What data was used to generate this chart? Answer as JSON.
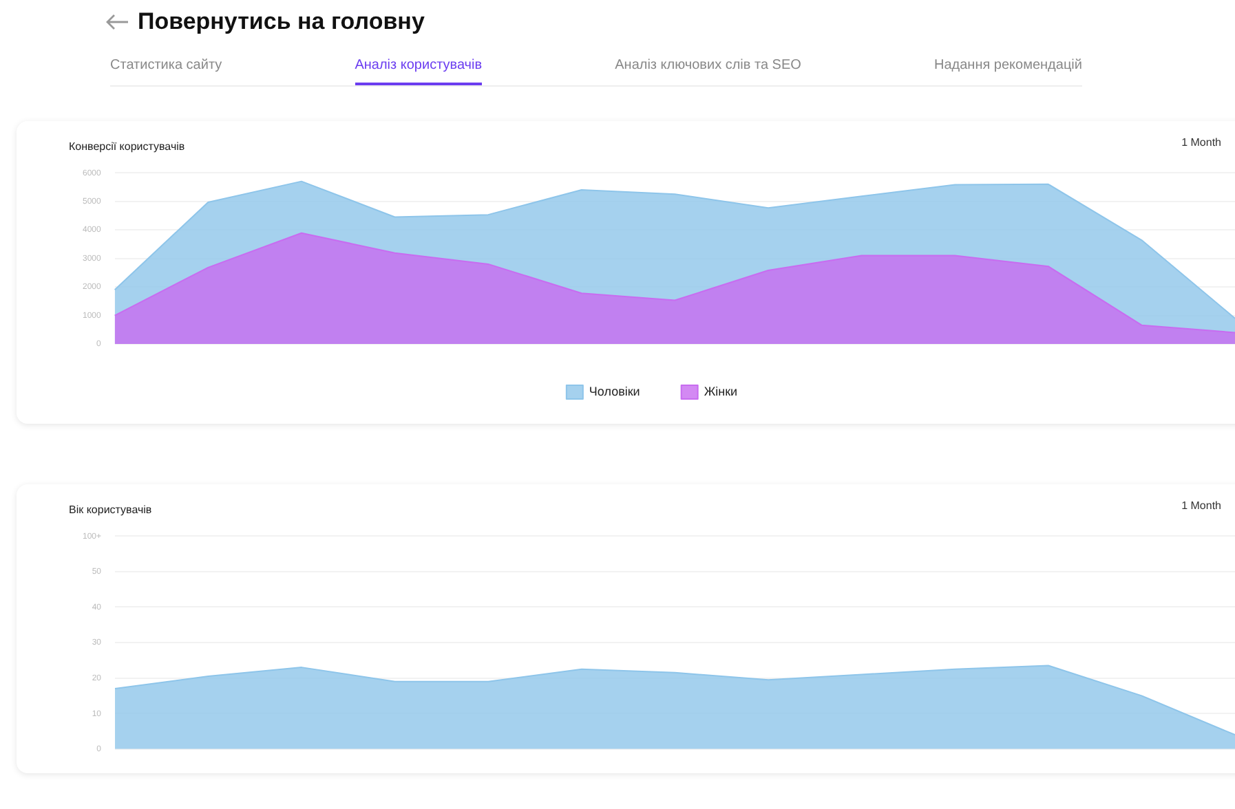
{
  "chart_data": [
    {
      "type": "other",
      "title": "Повернутись на головну",
      "annotations": [
        "Статистика сайту",
        "Аналіз користувачів",
        "Аналіз ключових слів та SEO",
        "Надання рекомендацій"
      ]
    },
    {
      "type": "area",
      "title": "Конверсії користувачів",
      "annotations": [
        "1 Month"
      ],
      "categories": [
        null,
        null,
        null,
        null,
        null,
        null,
        null,
        null,
        null,
        null,
        null,
        null,
        null
      ],
      "series": [
        {
          "name": "Чоловіки",
          "color": "#8ec5ea",
          "values": [
            1900,
            4970,
            5700,
            4450,
            4530,
            5400,
            5250,
            4770,
            5180,
            5580,
            5600,
            3640,
            900
          ]
        },
        {
          "name": "Жінки",
          "color": "#c86cf0",
          "values": [
            1000,
            2680,
            3890,
            3190,
            2800,
            1780,
            1530,
            2580,
            3100,
            3100,
            2720,
            660,
            400
          ]
        }
      ],
      "ylim": [
        0,
        6000
      ],
      "yticks": [
        0,
        1000,
        2000,
        3000,
        4000,
        5000,
        6000
      ],
      "grid": "y",
      "legend": "bottom",
      "tick_labels": "y"
    },
    {
      "type": "area",
      "title": "Вік користувачів",
      "annotations": [
        "1 Month"
      ],
      "categories": [
        null,
        null,
        null,
        null,
        null,
        null,
        null,
        null,
        null,
        null,
        null,
        null,
        null
      ],
      "series": [
        {
          "color": "#8ec5ea",
          "values": [
            17,
            20.5,
            23,
            19,
            19,
            22.5,
            21.5,
            19.5,
            21,
            22.5,
            23.5,
            15,
            4
          ]
        }
      ],
      "ylim": [
        0,
        60
      ],
      "yticks": [
        0,
        10,
        20,
        30,
        40,
        50,
        {
          "value": 60,
          "label": "100+"
        }
      ],
      "grid": "y",
      "tick_labels": "y"
    }
  ]
}
